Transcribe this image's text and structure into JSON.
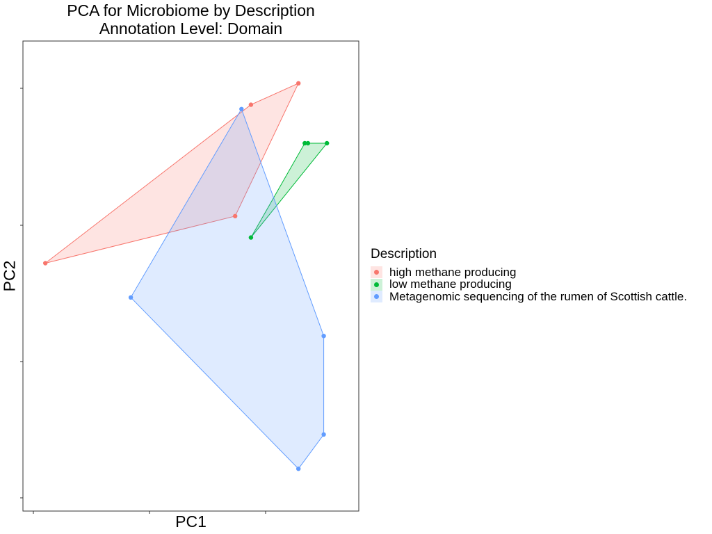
{
  "chart_data": {
    "type": "scatter",
    "title": "PCA for Microbiome by Description",
    "subtitle": "Annotation Level: Domain",
    "xlabel": "PC1",
    "ylabel": "PC2",
    "legend_title": "Description",
    "legend_position": "right",
    "grid": false,
    "show_hulls": true,
    "xlim": [
      0,
      100
    ],
    "ylim": [
      0,
      100
    ],
    "series": [
      {
        "name": "high methane producing",
        "color": "#F8766D",
        "x": [
          84,
          69,
          64,
          4
        ],
        "y": [
          95,
          90,
          64,
          53
        ]
      },
      {
        "name": "low methane producing",
        "color": "#00BA38",
        "x": [
          86,
          87,
          93,
          69
        ],
        "y": [
          81,
          81,
          81,
          59
        ]
      },
      {
        "name": "Metagenomic sequencing of the rumen of Scottish cattle.",
        "color": "#619CFF",
        "x": [
          66,
          31,
          92,
          92,
          84
        ],
        "y": [
          89,
          45,
          36,
          13,
          5
        ]
      }
    ]
  }
}
